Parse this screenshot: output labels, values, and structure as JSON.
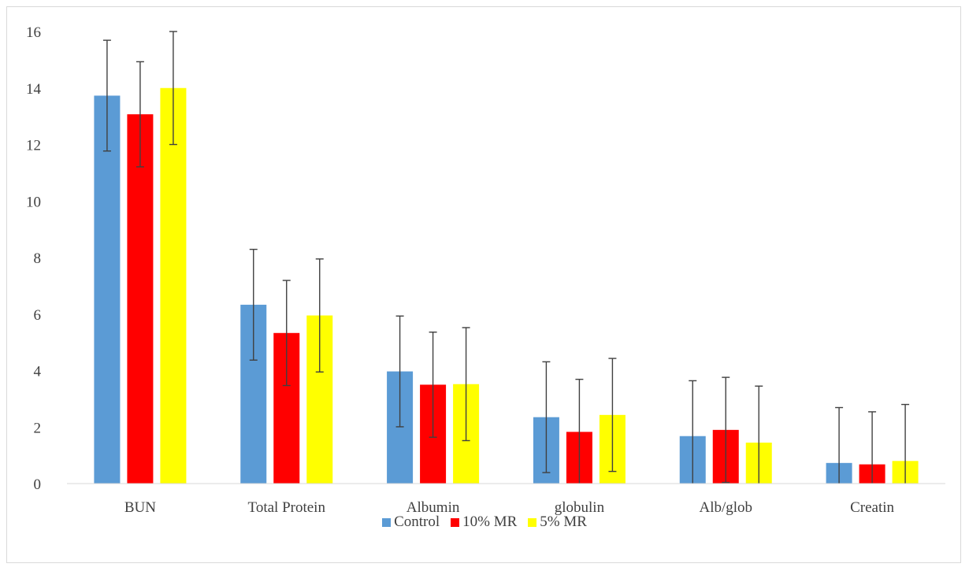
{
  "chart_data": {
    "type": "bar",
    "categories": [
      "BUN",
      "Total Protein",
      "Albumin",
      "globulin",
      "Alb/glob",
      "Creatin"
    ],
    "series": [
      {
        "name": "Control",
        "color": "#5b9bd5",
        "values": [
          13.73,
          6.33,
          3.97,
          2.35,
          1.68,
          0.73
        ],
        "errors": [
          1.96,
          1.96,
          1.96,
          1.96,
          1.96,
          1.96
        ]
      },
      {
        "name": "10% MR",
        "color": "#ff0000",
        "values": [
          13.07,
          5.33,
          3.5,
          1.83,
          1.9,
          0.68
        ],
        "errors": [
          1.86,
          1.86,
          1.86,
          1.86,
          1.86,
          1.86
        ]
      },
      {
        "name": "5% MR",
        "color": "#ffff00",
        "values": [
          14.0,
          5.95,
          3.52,
          2.43,
          1.45,
          0.8
        ],
        "errors": [
          2.0,
          2.0,
          2.0,
          2.0,
          2.0,
          2.0
        ]
      }
    ],
    "ylim": [
      0,
      16
    ],
    "yticks": [
      0,
      2,
      4,
      6,
      8,
      10,
      12,
      14,
      16
    ],
    "grid": false,
    "legend_position": "bottom",
    "title": "",
    "xlabel": "",
    "ylabel": ""
  }
}
